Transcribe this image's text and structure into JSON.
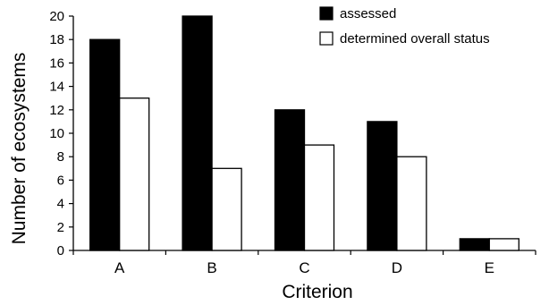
{
  "chart_data": {
    "type": "bar",
    "title": "",
    "xlabel": "Criterion",
    "ylabel": "Number of ecosystems",
    "categories": [
      "A",
      "B",
      "C",
      "D",
      "E"
    ],
    "ylim": [
      0,
      20
    ],
    "yticks": [
      0,
      2,
      4,
      6,
      8,
      10,
      12,
      14,
      16,
      18,
      20
    ],
    "grid": false,
    "legend_position": "top-right",
    "series": [
      {
        "name": "assessed",
        "values": [
          18,
          20,
          12,
          11,
          1
        ],
        "color": "#000000"
      },
      {
        "name": "determined overall status",
        "values": [
          13,
          7,
          9,
          8,
          1
        ],
        "color": "#ffffff"
      }
    ]
  }
}
